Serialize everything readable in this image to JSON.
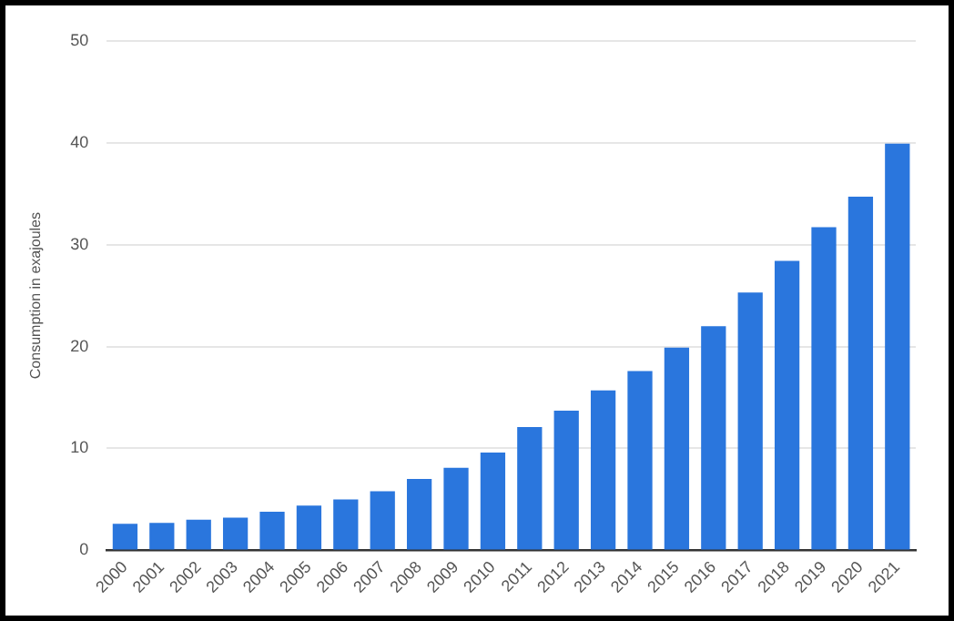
{
  "chart_data": {
    "type": "bar",
    "ylabel": "Consumption in exajoules",
    "categories": [
      "2000",
      "2001",
      "2002",
      "2003",
      "2004",
      "2005",
      "2006",
      "2007",
      "2008",
      "2009",
      "2010",
      "2011",
      "2012",
      "2013",
      "2014",
      "2015",
      "2016",
      "2017",
      "2018",
      "2019",
      "2020",
      "2021"
    ],
    "values": [
      2.6,
      2.7,
      3.0,
      3.2,
      3.8,
      4.4,
      5.0,
      5.8,
      7.0,
      8.1,
      9.6,
      12.1,
      13.7,
      15.7,
      17.6,
      19.9,
      22.0,
      25.3,
      28.4,
      31.7,
      34.7,
      39.9
    ],
    "color": "#2a76dd",
    "ylim": [
      0,
      50
    ],
    "yticks": [
      0,
      10,
      20,
      30,
      40,
      50
    ],
    "grid": "y",
    "legend": false
  }
}
